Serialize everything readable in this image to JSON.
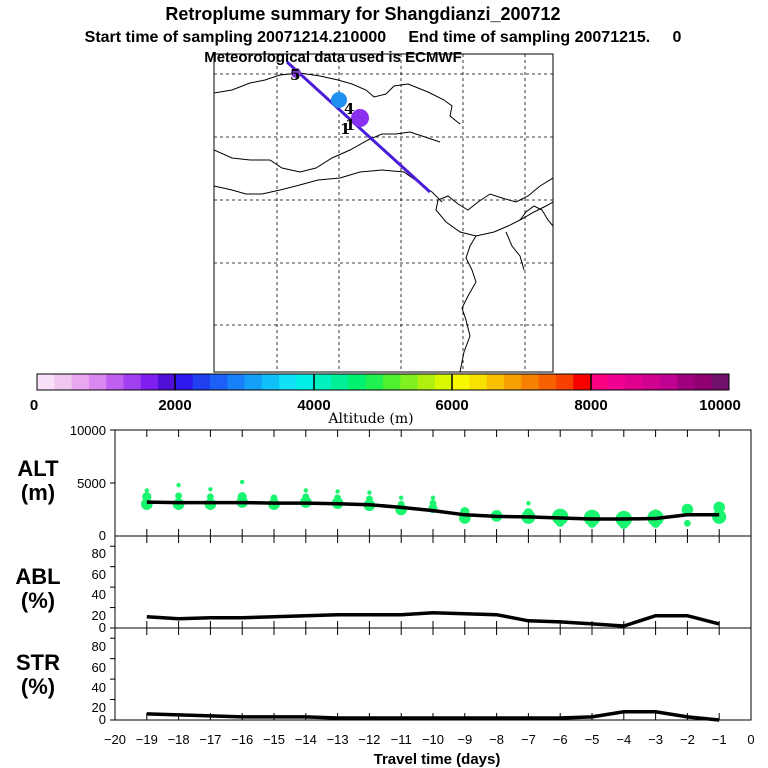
{
  "header": {
    "title": "Retroplume summary for Shangdianzi_200712",
    "sampling_line": "Start time of sampling 20071214.210000     End time of sampling 20071215.     0",
    "met_line": "Meteorological data used is ECMWF"
  },
  "map": {
    "markers": [
      {
        "label": "5",
        "color": "#7b3bd0"
      },
      {
        "label": "4",
        "color": "#2090f0"
      },
      {
        "label": "1",
        "color": "#8a30f0"
      },
      {
        "label": "1",
        "color": "#8a30f0"
      }
    ],
    "track_color": "#4a1ed8"
  },
  "colorbar": {
    "colors": [
      "#f8e0f8",
      "#f0c8f0",
      "#e8a8f0",
      "#d888f0",
      "#c060f0",
      "#a040f0",
      "#8020f0",
      "#5010d8",
      "#3018f0",
      "#2040f0",
      "#1c60f8",
      "#1880f8",
      "#14a0f8",
      "#10c0f8",
      "#10e0f8",
      "#00f0e8",
      "#00f0c0",
      "#00f098",
      "#00f070",
      "#20f050",
      "#50f030",
      "#80f020",
      "#b0f010",
      "#d8f800",
      "#f8f800",
      "#f8e000",
      "#f8c000",
      "#f8a000",
      "#f88000",
      "#f86000",
      "#f84000",
      "#f80000",
      "#f80080",
      "#f00090",
      "#e00090",
      "#d00090",
      "#c00090",
      "#a00080",
      "#900070",
      "#70106a"
    ],
    "tick_labels": [
      "0",
      "2000",
      "4000",
      "6000",
      "8000",
      "10000"
    ],
    "label": "Altitude (m)"
  },
  "panels": {
    "alt": {
      "label1": "ALT",
      "label2": "(m)",
      "ticks": [
        "10000",
        "5000",
        "0"
      ]
    },
    "abl": {
      "label1": "ABL",
      "label2": "(%)",
      "ticks": [
        "80",
        "60",
        "40",
        "20",
        "0"
      ]
    },
    "str": {
      "label1": "STR",
      "label2": "(%)",
      "ticks": [
        "80",
        "60",
        "40",
        "20",
        "0"
      ]
    }
  },
  "chart_data": {
    "type": "line",
    "xlabel": "Travel time (days)",
    "xlim": [
      -20,
      0
    ],
    "x_tick_labels": [
      "-20",
      "-19",
      "-18",
      "-17",
      "-16",
      "-15",
      "-14",
      "-13",
      "-12",
      "-11",
      "-10",
      "-9",
      "-8",
      "-7",
      "-6",
      "-5",
      "-4",
      "-3",
      "-2",
      "-1",
      "0"
    ],
    "days": [
      -19,
      -18,
      -17,
      -16,
      -15,
      -14,
      -13,
      -12,
      -11,
      -10,
      -9,
      -8,
      -7,
      -6,
      -5,
      -4,
      -3,
      -2,
      -1
    ],
    "series": [
      {
        "name": "ALT (m)",
        "ylim": [
          0,
          10000
        ],
        "values": [
          3200,
          3150,
          3150,
          3150,
          3100,
          3100,
          3050,
          2950,
          2700,
          2400,
          2000,
          1850,
          1800,
          1700,
          1600,
          1600,
          1650,
          2000,
          2000
        ]
      },
      {
        "name": "ABL (%)",
        "ylim": [
          0,
          90
        ],
        "values": [
          11,
          9,
          10,
          10,
          11,
          12,
          13,
          13,
          13,
          15,
          14,
          13,
          7,
          6,
          4,
          2,
          12,
          12,
          4
        ]
      },
      {
        "name": "STR (%)",
        "ylim": [
          0,
          90
        ],
        "values": [
          6,
          5,
          4,
          3,
          3,
          3,
          2,
          2,
          2,
          2,
          2,
          2,
          2,
          2,
          3,
          8,
          8,
          3,
          0
        ]
      }
    ],
    "alt_scatter": {
      "color": "#19f56e",
      "points": [
        {
          "day": -19,
          "alt": 3000,
          "size": 4
        },
        {
          "day": -19,
          "alt": 3700,
          "size": 3
        },
        {
          "day": -19,
          "alt": 4300,
          "size": 1
        },
        {
          "day": -18,
          "alt": 3000,
          "size": 4
        },
        {
          "day": -18,
          "alt": 3800,
          "size": 2
        },
        {
          "day": -18,
          "alt": 4800,
          "size": 1
        },
        {
          "day": -17,
          "alt": 3000,
          "size": 4
        },
        {
          "day": -17,
          "alt": 3700,
          "size": 2
        },
        {
          "day": -17,
          "alt": 4400,
          "size": 1
        },
        {
          "day": -16,
          "alt": 3200,
          "size": 4
        },
        {
          "day": -16,
          "alt": 3700,
          "size": 3
        },
        {
          "day": -16,
          "alt": 5100,
          "size": 1
        },
        {
          "day": -15,
          "alt": 3000,
          "size": 4
        },
        {
          "day": -15,
          "alt": 3600,
          "size": 2
        },
        {
          "day": -14,
          "alt": 3200,
          "size": 4
        },
        {
          "day": -14,
          "alt": 3700,
          "size": 2
        },
        {
          "day": -14,
          "alt": 4300,
          "size": 1
        },
        {
          "day": -13,
          "alt": 3100,
          "size": 4
        },
        {
          "day": -13,
          "alt": 3600,
          "size": 2
        },
        {
          "day": -13,
          "alt": 4200,
          "size": 1
        },
        {
          "day": -12,
          "alt": 2900,
          "size": 4
        },
        {
          "day": -12,
          "alt": 3500,
          "size": 2
        },
        {
          "day": -12,
          "alt": 4100,
          "size": 1
        },
        {
          "day": -11,
          "alt": 2500,
          "size": 4
        },
        {
          "day": -11,
          "alt": 3000,
          "size": 2
        },
        {
          "day": -11,
          "alt": 3600,
          "size": 1
        },
        {
          "day": -10,
          "alt": 2600,
          "size": 3
        },
        {
          "day": -10,
          "alt": 3100,
          "size": 2
        },
        {
          "day": -10,
          "alt": 3600,
          "size": 1
        },
        {
          "day": -9,
          "alt": 1700,
          "size": 4
        },
        {
          "day": -9,
          "alt": 2300,
          "size": 3
        },
        {
          "day": -9,
          "alt": 1400,
          "size": 1
        },
        {
          "day": -8,
          "alt": 1900,
          "size": 4
        },
        {
          "day": -7,
          "alt": 1800,
          "size": 5
        },
        {
          "day": -7,
          "alt": 2200,
          "size": 3
        },
        {
          "day": -7,
          "alt": 3100,
          "size": 1
        },
        {
          "day": -6,
          "alt": 1800,
          "size": 6
        },
        {
          "day": -6,
          "alt": 1300,
          "size": 3
        },
        {
          "day": -5,
          "alt": 1700,
          "size": 6
        },
        {
          "day": -5,
          "alt": 1200,
          "size": 3
        },
        {
          "day": -4,
          "alt": 1600,
          "size": 6
        },
        {
          "day": -4,
          "alt": 1100,
          "size": 3
        },
        {
          "day": -3,
          "alt": 1700,
          "size": 6
        },
        {
          "day": -3,
          "alt": 1200,
          "size": 3
        },
        {
          "day": -3,
          "alt": 2200,
          "size": 2
        },
        {
          "day": -2,
          "alt": 2500,
          "size": 4
        },
        {
          "day": -2,
          "alt": 1200,
          "size": 2
        },
        {
          "day": -1,
          "alt": 1800,
          "size": 5
        },
        {
          "day": -1,
          "alt": 2700,
          "size": 4
        }
      ]
    }
  }
}
